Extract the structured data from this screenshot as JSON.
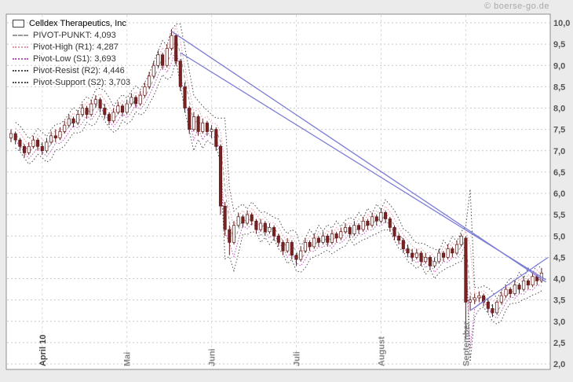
{
  "page": {
    "watermark": "© boerse-go.de"
  },
  "legend": {
    "series_title": "Celldex Therapeutics, Inc",
    "items": [
      {
        "label": "PIVOT-PUNKT: 4,093",
        "line_style": "dashed",
        "color": "#9a9a9a"
      },
      {
        "label": "Pivot-High (R1): 4,287",
        "line_style": "dotted",
        "color": "#e39aa6"
      },
      {
        "label": "Pivot-Low (S1): 3,693",
        "line_style": "dotted",
        "color": "#bb55bb"
      },
      {
        "label": "Pivot-Resist (R2): 4,446",
        "line_style": "dotted",
        "color": "#4d4d4d"
      },
      {
        "label": "Pivot-Support (S2): 3,703",
        "line_style": "dotted",
        "color": "#4d4d4d"
      }
    ]
  },
  "chart_data": {
    "type": "candlestick",
    "title": "Celldex Therapeutics, Inc",
    "ylim": [
      2.0,
      10.0
    ],
    "y_ticks": {
      "values": [
        10.0,
        9.5,
        9.0,
        8.5,
        8.0,
        7.5,
        7.0,
        6.5,
        6.0,
        5.5,
        5.0,
        4.5,
        4.0,
        3.5,
        3.0,
        2.5,
        2.0
      ],
      "labels": [
        "10,0",
        "9,5",
        "9,0",
        "8,5",
        "8,0",
        "7,5",
        "7,0",
        "6,5",
        "6,0",
        "5,5",
        "5,0",
        "4,5",
        "4,0",
        "3,5",
        "3,0",
        "2,5",
        "2,0"
      ]
    },
    "x_months": [
      {
        "label": "April 10",
        "index": 7
      },
      {
        "label": "Mai",
        "index": 26
      },
      {
        "label": "Juni",
        "index": 45
      },
      {
        "label": "Juli",
        "index": 64
      },
      {
        "label": "August",
        "index": 83
      },
      {
        "label": "September",
        "index": 102
      }
    ],
    "candles": [
      [
        7.3,
        7.5,
        7.2,
        7.4
      ],
      [
        7.4,
        7.45,
        7.15,
        7.25
      ],
      [
        7.25,
        7.3,
        7.0,
        7.1
      ],
      [
        7.1,
        7.15,
        6.85,
        6.95
      ],
      [
        6.95,
        7.2,
        6.9,
        7.1
      ],
      [
        7.1,
        7.35,
        7.05,
        7.25
      ],
      [
        7.25,
        7.3,
        7.0,
        7.1
      ],
      [
        7.1,
        7.2,
        6.9,
        7.0
      ],
      [
        7.0,
        7.3,
        6.95,
        7.2
      ],
      [
        7.2,
        7.45,
        7.15,
        7.35
      ],
      [
        7.35,
        7.5,
        7.2,
        7.3
      ],
      [
        7.3,
        7.55,
        7.25,
        7.45
      ],
      [
        7.45,
        7.7,
        7.4,
        7.6
      ],
      [
        7.6,
        7.85,
        7.55,
        7.75
      ],
      [
        7.75,
        7.8,
        7.55,
        7.65
      ],
      [
        7.65,
        7.95,
        7.6,
        7.85
      ],
      [
        7.85,
        8.1,
        7.8,
        8.0
      ],
      [
        8.0,
        8.05,
        7.75,
        7.85
      ],
      [
        7.85,
        8.2,
        7.8,
        8.1
      ],
      [
        8.1,
        8.3,
        8.0,
        8.2
      ],
      [
        8.2,
        8.25,
        7.9,
        8.0
      ],
      [
        8.0,
        8.1,
        7.75,
        7.85
      ],
      [
        7.85,
        7.9,
        7.6,
        7.7
      ],
      [
        7.7,
        8.0,
        7.65,
        7.9
      ],
      [
        7.9,
        8.15,
        7.85,
        8.05
      ],
      [
        8.05,
        8.1,
        7.8,
        7.9
      ],
      [
        7.9,
        8.2,
        7.85,
        8.1
      ],
      [
        8.1,
        8.35,
        8.05,
        8.25
      ],
      [
        8.25,
        8.3,
        8.0,
        8.1
      ],
      [
        8.1,
        8.4,
        8.05,
        8.3
      ],
      [
        8.3,
        8.6,
        8.25,
        8.5
      ],
      [
        8.5,
        8.85,
        8.45,
        8.75
      ],
      [
        8.75,
        9.1,
        8.7,
        9.0
      ],
      [
        9.0,
        9.35,
        8.95,
        9.25
      ],
      [
        9.25,
        9.3,
        8.9,
        9.0
      ],
      [
        9.0,
        9.5,
        8.95,
        9.4
      ],
      [
        9.4,
        9.85,
        9.35,
        9.7
      ],
      [
        9.7,
        9.75,
        9.0,
        9.1
      ],
      [
        9.1,
        9.15,
        8.4,
        8.5
      ],
      [
        8.5,
        8.6,
        7.9,
        8.0
      ],
      [
        8.0,
        8.05,
        7.4,
        7.5
      ],
      [
        7.5,
        7.9,
        7.45,
        7.8
      ],
      [
        7.8,
        7.85,
        7.35,
        7.45
      ],
      [
        7.45,
        7.75,
        7.4,
        7.65
      ],
      [
        7.65,
        7.7,
        7.35,
        7.45
      ],
      [
        7.45,
        7.6,
        7.3,
        7.5
      ],
      [
        7.5,
        7.55,
        7.0,
        7.1
      ],
      [
        7.1,
        7.15,
        5.5,
        5.7
      ],
      [
        5.7,
        5.8,
        5.0,
        5.15
      ],
      [
        5.15,
        5.25,
        4.55,
        4.85
      ],
      [
        4.85,
        5.35,
        4.8,
        5.25
      ],
      [
        5.25,
        5.55,
        5.2,
        5.45
      ],
      [
        5.45,
        5.5,
        5.2,
        5.3
      ],
      [
        5.3,
        5.6,
        5.25,
        5.5
      ],
      [
        5.5,
        5.55,
        5.25,
        5.35
      ],
      [
        5.35,
        5.4,
        5.05,
        5.15
      ],
      [
        5.15,
        5.4,
        5.1,
        5.3
      ],
      [
        5.3,
        5.35,
        5.0,
        5.1
      ],
      [
        5.1,
        5.3,
        5.05,
        5.2
      ],
      [
        5.2,
        5.25,
        4.9,
        5.0
      ],
      [
        5.0,
        5.05,
        4.75,
        4.85
      ],
      [
        4.85,
        4.9,
        4.55,
        4.65
      ],
      [
        4.65,
        4.95,
        4.6,
        4.85
      ],
      [
        4.85,
        4.9,
        4.45,
        4.55
      ],
      [
        4.55,
        4.6,
        4.3,
        4.45
      ],
      [
        4.45,
        4.75,
        4.4,
        4.65
      ],
      [
        4.65,
        4.95,
        4.6,
        4.85
      ],
      [
        4.85,
        4.9,
        4.65,
        4.75
      ],
      [
        4.75,
        5.05,
        4.7,
        4.95
      ],
      [
        4.95,
        5.0,
        4.75,
        4.85
      ],
      [
        4.85,
        5.1,
        4.8,
        5.0
      ],
      [
        5.0,
        5.05,
        4.75,
        4.85
      ],
      [
        4.85,
        5.15,
        4.8,
        5.05
      ],
      [
        5.05,
        5.1,
        4.85,
        4.95
      ],
      [
        4.95,
        5.2,
        4.9,
        5.1
      ],
      [
        5.1,
        5.3,
        5.05,
        5.2
      ],
      [
        5.2,
        5.25,
        4.95,
        5.05
      ],
      [
        5.05,
        5.35,
        5.0,
        5.25
      ],
      [
        5.25,
        5.3,
        5.05,
        5.15
      ],
      [
        5.15,
        5.45,
        5.1,
        5.35
      ],
      [
        5.35,
        5.4,
        5.15,
        5.25
      ],
      [
        5.25,
        5.55,
        5.2,
        5.45
      ],
      [
        5.45,
        5.5,
        5.25,
        5.35
      ],
      [
        5.35,
        5.65,
        5.3,
        5.55
      ],
      [
        5.55,
        5.6,
        5.3,
        5.4
      ],
      [
        5.4,
        5.45,
        5.1,
        5.2
      ],
      [
        5.2,
        5.25,
        4.9,
        5.0
      ],
      [
        5.0,
        5.05,
        4.8,
        4.9
      ],
      [
        4.9,
        4.95,
        4.6,
        4.7
      ],
      [
        4.7,
        4.8,
        4.5,
        4.6
      ],
      [
        4.6,
        4.7,
        4.4,
        4.5
      ],
      [
        4.5,
        4.7,
        4.45,
        4.6
      ],
      [
        4.6,
        4.65,
        4.3,
        4.4
      ],
      [
        4.4,
        4.6,
        4.35,
        4.5
      ],
      [
        4.5,
        4.55,
        4.2,
        4.3
      ],
      [
        4.3,
        4.5,
        4.25,
        4.4
      ],
      [
        4.4,
        4.7,
        4.35,
        4.6
      ],
      [
        4.6,
        4.65,
        4.4,
        4.5
      ],
      [
        4.5,
        4.8,
        4.45,
        4.7
      ],
      [
        4.7,
        4.75,
        4.5,
        4.6
      ],
      [
        4.6,
        4.9,
        4.55,
        4.8
      ],
      [
        4.8,
        5.05,
        4.75,
        5.0
      ],
      [
        4.95,
        5.0,
        2.58,
        3.45
      ],
      [
        3.45,
        3.6,
        3.25,
        3.5
      ],
      [
        3.5,
        3.65,
        3.4,
        3.55
      ],
      [
        3.55,
        3.7,
        3.45,
        3.6
      ],
      [
        3.6,
        3.65,
        3.35,
        3.45
      ],
      [
        3.45,
        3.55,
        3.2,
        3.3
      ],
      [
        3.3,
        3.4,
        3.1,
        3.2
      ],
      [
        3.2,
        3.5,
        3.15,
        3.45
      ],
      [
        3.45,
        3.7,
        3.4,
        3.6
      ],
      [
        3.6,
        3.85,
        3.55,
        3.75
      ],
      [
        3.75,
        3.8,
        3.55,
        3.65
      ],
      [
        3.65,
        3.95,
        3.6,
        3.85
      ],
      [
        3.85,
        3.9,
        3.65,
        3.75
      ],
      [
        3.75,
        4.05,
        3.7,
        3.95
      ],
      [
        3.95,
        4.0,
        3.75,
        3.85
      ],
      [
        3.85,
        4.15,
        3.8,
        4.05
      ],
      [
        4.05,
        4.1,
        3.85,
        3.95
      ],
      [
        3.95,
        4.25,
        3.9,
        4.13
      ]
    ],
    "trendlines": [
      {
        "from": [
          36,
          9.8
        ],
        "to": [
          120,
          3.92
        ]
      },
      {
        "from": [
          38,
          9.3
        ],
        "to": [
          120,
          3.97
        ]
      },
      {
        "from": [
          103,
          3.25
        ],
        "to": [
          120.5,
          4.5
        ]
      }
    ],
    "colors": {
      "candle_down": "#7a2222",
      "candle_up_fill": "#ffffff",
      "candle_stroke": "#5e1818",
      "trendline": "#7d7dd6",
      "pivot": "#9a9a9a",
      "r1": "#e39aa6",
      "s1": "#bb55bb",
      "r2": "#4d4d4d",
      "s2": "#4d4d4d",
      "grid": "#c9c9c9",
      "month_grid": "#dcdcdc",
      "axis_text": "#555555",
      "month_text": "#858585",
      "month_text_first": "#444444"
    }
  }
}
